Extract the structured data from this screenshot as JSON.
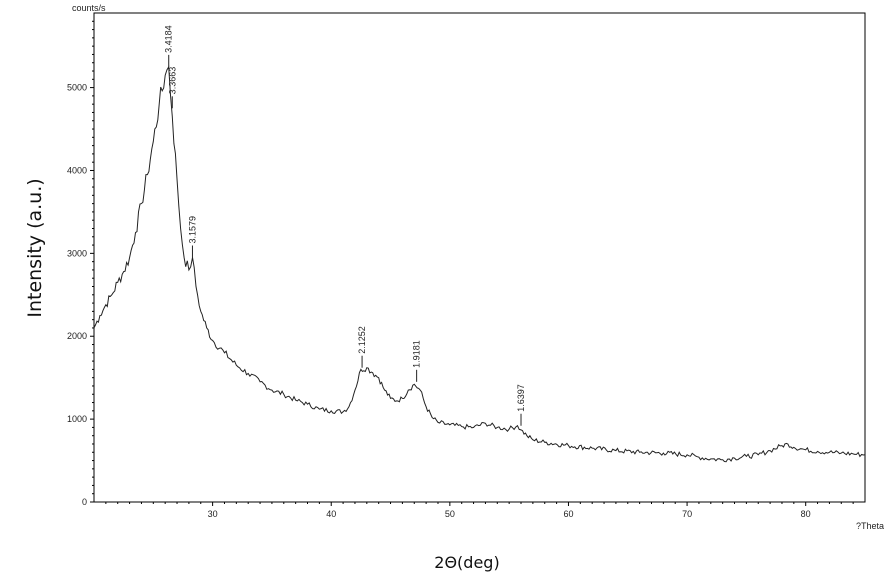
{
  "chart_data": {
    "type": "line",
    "title": "",
    "xlabel": "2Θ(deg)",
    "ylabel": "Intensity (a.u.)",
    "y_units": "counts/s",
    "x_units": "?Theta",
    "xlim": [
      20,
      85
    ],
    "ylim": [
      0,
      5900
    ],
    "xticks": [
      "30",
      "40",
      "50",
      "60",
      "70",
      "80"
    ],
    "yticks": [
      "0",
      "1000",
      "2000",
      "3000",
      "4000",
      "5000"
    ],
    "grid": false,
    "series": [
      {
        "x": [
          20,
          20.5,
          21,
          21.5,
          22,
          22.5,
          23,
          23.5,
          24,
          24.5,
          25,
          25.5,
          26,
          26.3,
          26.6,
          27,
          27.3,
          27.6,
          28,
          28.3,
          28.6,
          29,
          29.5,
          30,
          31,
          32,
          33,
          34,
          35,
          36,
          37,
          38,
          39,
          40,
          41,
          41.5,
          42,
          42.5,
          43,
          43.5,
          44,
          44.5,
          45,
          45.5,
          46,
          46.5,
          47,
          47.5,
          48,
          48.5,
          49,
          50,
          51,
          52,
          53,
          54,
          55,
          55.7,
          56,
          56.5,
          57,
          58,
          60,
          62,
          64,
          66,
          68,
          70,
          71,
          72,
          73,
          74,
          75,
          76,
          77,
          78,
          78.5,
          79,
          80,
          81,
          82,
          83,
          84,
          85
        ],
        "y": [
          2100,
          2250,
          2380,
          2500,
          2650,
          2780,
          2950,
          3250,
          3600,
          3950,
          4350,
          4800,
          5150,
          5250,
          4650,
          3900,
          3300,
          2950,
          2800,
          2950,
          2600,
          2300,
          2100,
          1950,
          1800,
          1650,
          1550,
          1450,
          1350,
          1300,
          1230,
          1180,
          1120,
          1100,
          1090,
          1150,
          1350,
          1600,
          1620,
          1560,
          1500,
          1350,
          1250,
          1220,
          1250,
          1350,
          1420,
          1350,
          1150,
          1020,
          960,
          930,
          910,
          900,
          950,
          900,
          880,
          920,
          870,
          800,
          750,
          720,
          680,
          650,
          620,
          600,
          590,
          570,
          540,
          520,
          510,
          530,
          550,
          570,
          620,
          680,
          700,
          660,
          630,
          610,
          600,
          590,
          580,
          570
        ]
      }
    ],
    "peak_labels": [
      {
        "label": "3.4184",
        "x": 26.3,
        "y": 5250
      },
      {
        "label": "3.3663",
        "x": 26.6,
        "y": 4750
      },
      {
        "label": "3.1579",
        "x": 28.3,
        "y": 2950
      },
      {
        "label": "2.1252",
        "x": 42.6,
        "y": 1620
      },
      {
        "label": "1.9181",
        "x": 47.2,
        "y": 1450
      },
      {
        "label": "1.6397",
        "x": 56.0,
        "y": 920
      }
    ]
  }
}
